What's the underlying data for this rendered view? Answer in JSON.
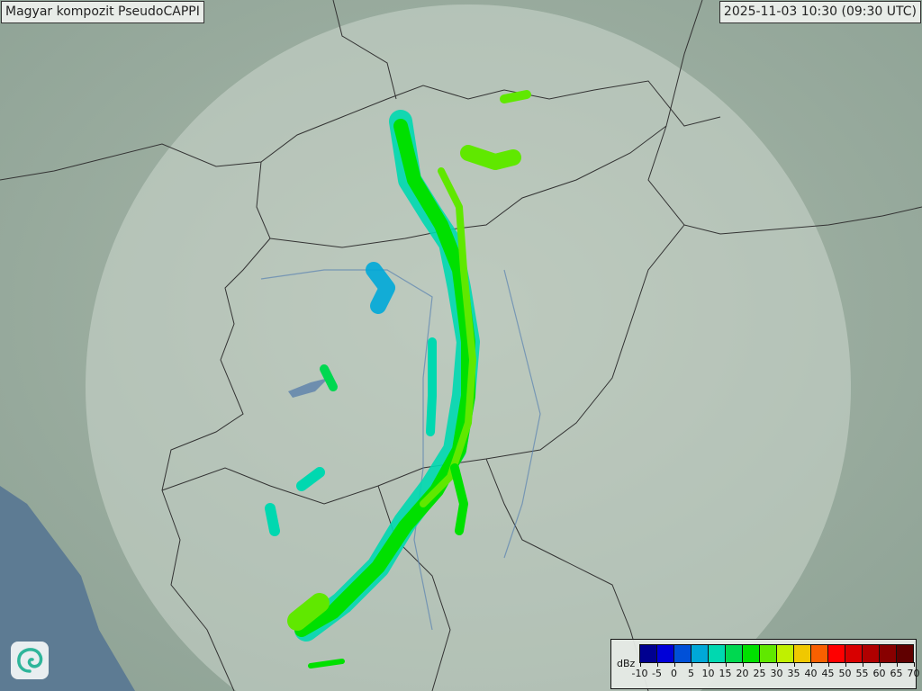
{
  "header": {
    "title": "Magyar kompozit  PseudoCAPPI",
    "timestamp": "2025-11-03 10:30 (09:30 UTC)"
  },
  "legend": {
    "unit": "dBz",
    "ticks": [
      "-10",
      "-5",
      "0",
      "5",
      "10",
      "15",
      "20",
      "25",
      "30",
      "35",
      "40",
      "45",
      "50",
      "55",
      "60",
      "65",
      "70"
    ],
    "colors": [
      "#000090",
      "#0000d8",
      "#0050d8",
      "#00a8d8",
      "#00d8b0",
      "#00d850",
      "#00e000",
      "#60e800",
      "#c0f000",
      "#f0c800",
      "#f86000",
      "#ff0000",
      "#d80000",
      "#b00000",
      "#880000",
      "#600000"
    ]
  },
  "map": {
    "background": "#9fb0a6",
    "radar_coverage_color": "#c8d4cc",
    "logo_icon": "swirl-logo-icon"
  }
}
